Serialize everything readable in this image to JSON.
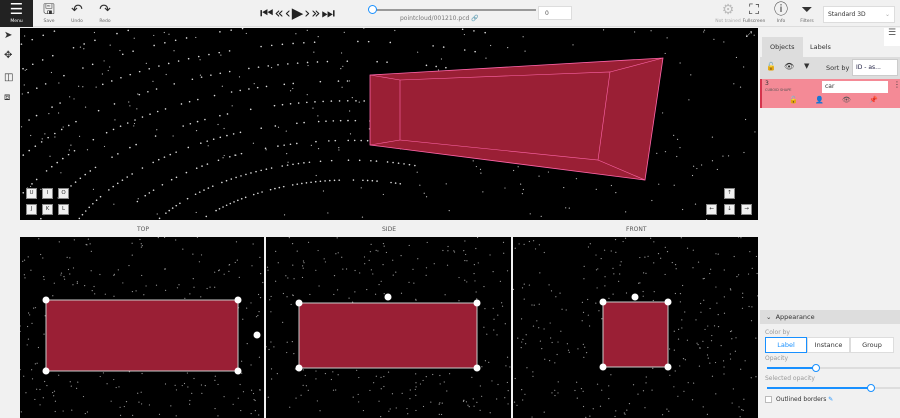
{
  "toolbar": {
    "menu": "Menu",
    "save": "Save",
    "undo": "Undo",
    "redo": "Redo",
    "filename": "pointcloud/001210.pcd",
    "frame": "0",
    "ai_status": "Not trained",
    "fullscreen": "Fullscreen",
    "info": "Info",
    "filters": "Filters",
    "workspace": "Standard 3D",
    "player": [
      "⏮",
      "«",
      "‹",
      "▶",
      "›",
      "»",
      "⏭"
    ]
  },
  "views": {
    "top": "TOP",
    "side": "SIDE",
    "front": "FRONT"
  },
  "camera_keys": [
    "U",
    "I",
    "O",
    "J",
    "K",
    "L"
  ],
  "nav_keys": [
    "↑",
    "←",
    "↓",
    "→"
  ],
  "sidebar": {
    "tabs": [
      "Objects",
      "Labels"
    ],
    "sort_label": "Sort by",
    "sort_value": "ID - as...",
    "object": {
      "id": "3",
      "type": "CUBOID SHAPE",
      "label": "car",
      "color": "#f48a96"
    }
  },
  "appearance": {
    "title": "Appearance",
    "color_by": "Color by",
    "options": [
      "Label",
      "Instance",
      "Group"
    ],
    "selected": "Label",
    "opacity_label": "Opacity",
    "opacity": 0.37,
    "selected_opacity_label": "Selected opacity",
    "selected_opacity": 0.78,
    "outlined": "Outlined borders",
    "outlined_checked": false
  },
  "cuboid_color": "#9a1f35"
}
